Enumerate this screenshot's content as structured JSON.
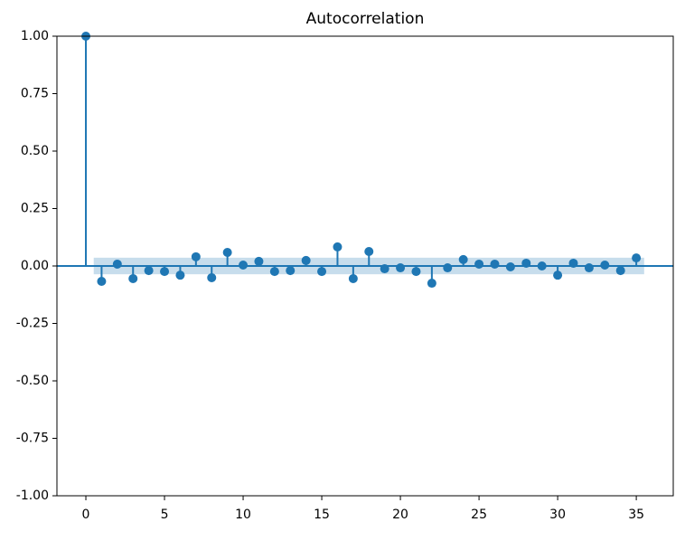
{
  "chart_data": {
    "type": "stem",
    "title": "Autocorrelation",
    "x": [
      0,
      1,
      2,
      3,
      4,
      5,
      6,
      7,
      8,
      9,
      10,
      11,
      12,
      13,
      14,
      15,
      16,
      17,
      18,
      19,
      20,
      21,
      22,
      23,
      24,
      25,
      26,
      27,
      28,
      29,
      30,
      31,
      32,
      33,
      34,
      35
    ],
    "series": [
      {
        "color": "#1f77b4",
        "values": [
          1.0,
          -0.067,
          0.008,
          -0.055,
          -0.02,
          -0.024,
          -0.04,
          0.04,
          -0.051,
          0.059,
          0.004,
          0.02,
          -0.024,
          -0.02,
          0.024,
          -0.024,
          0.083,
          -0.055,
          0.063,
          -0.012,
          -0.008,
          -0.024,
          -0.075,
          -0.008,
          0.028,
          0.008,
          0.008,
          -0.004,
          0.012,
          0,
          -0.04,
          0.012,
          -0.008,
          0.004,
          -0.02,
          0.035
        ]
      }
    ],
    "confint_halfwidth": 0.036,
    "xlim": [
      -1.84,
      37.35
    ],
    "xticks": [
      0,
      5,
      10,
      15,
      20,
      25,
      30,
      35
    ],
    "ylim": [
      -1.0,
      1.0
    ],
    "yticks": [
      {
        "value": -1.0,
        "label": "-1.00"
      },
      {
        "value": -0.75,
        "label": "-0.75"
      },
      {
        "value": -0.5,
        "label": "-0.50"
      },
      {
        "value": -0.25,
        "label": "-0.25"
      },
      {
        "value": 0.0,
        "label": "0.00"
      },
      {
        "value": 0.25,
        "label": "0.25"
      },
      {
        "value": 0.5,
        "label": "0.50"
      },
      {
        "value": 0.75,
        "label": "0.75"
      },
      {
        "value": 1.0,
        "label": "1.00"
      }
    ]
  }
}
